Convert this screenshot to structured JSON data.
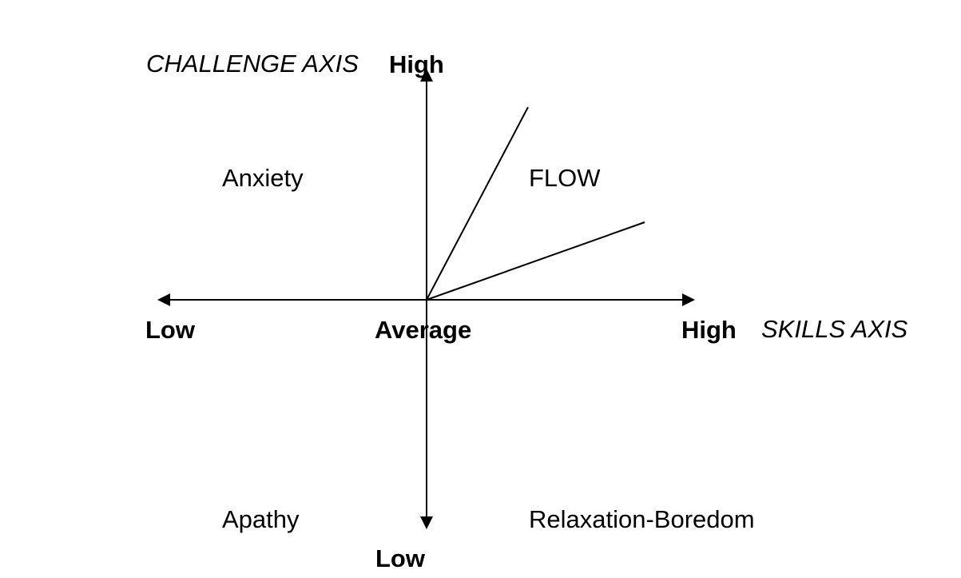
{
  "challenge_axis": {
    "title": "CHALLENGE AXIS",
    "high_label": "High",
    "low_label": "Low"
  },
  "skills_axis": {
    "title": "SKILLS AXIS",
    "low_label": "Low",
    "average_label": "Average",
    "high_label": "High"
  },
  "regions": {
    "anxiety": "Anxiety",
    "flow": "FLOW",
    "apathy": "Apathy",
    "relaxation_boredom": "Relaxation-Boredom"
  },
  "colors": {
    "line": "#000000",
    "background": "#ffffff"
  }
}
